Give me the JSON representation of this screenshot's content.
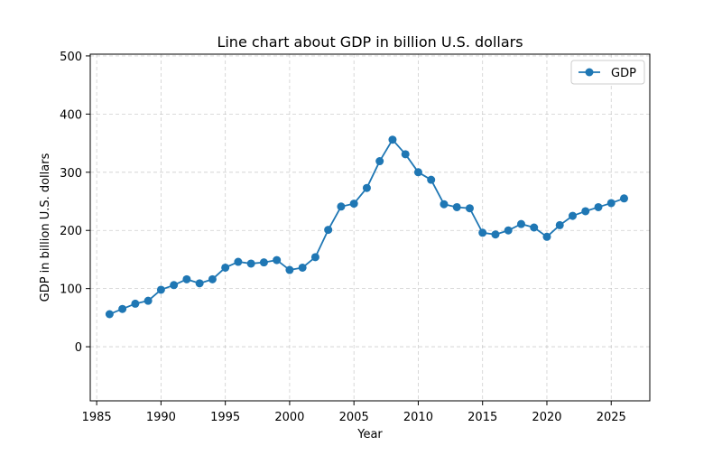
{
  "chart_data": {
    "type": "line",
    "title": "Line chart about GDP in billion U.S. dollars",
    "xlabel": "Year",
    "ylabel": "GDP in billion U.S. dollars",
    "xlim": [
      1984.5,
      2028
    ],
    "ylim": [
      -93,
      503
    ],
    "xticks": [
      1985,
      1990,
      1995,
      2000,
      2005,
      2010,
      2015,
      2020,
      2025
    ],
    "yticks": [
      0,
      100,
      200,
      300,
      400,
      500
    ],
    "grid": true,
    "legend_position": "top-right",
    "series": [
      {
        "name": "GDP",
        "color": "#1f77b4",
        "x": [
          1986,
          1987,
          1988,
          1989,
          1990,
          1991,
          1992,
          1993,
          1994,
          1995,
          1996,
          1997,
          1998,
          1999,
          2000,
          2001,
          2002,
          2003,
          2004,
          2005,
          2006,
          2007,
          2008,
          2009,
          2010,
          2011,
          2012,
          2013,
          2014,
          2015,
          2016,
          2017,
          2018,
          2019,
          2020,
          2021,
          2022,
          2023,
          2024,
          2025,
          2026
        ],
        "y": [
          56,
          65,
          74,
          79,
          98,
          106,
          116,
          109,
          116,
          136,
          146,
          143,
          145,
          149,
          132,
          136,
          154,
          201,
          241,
          246,
          273,
          319,
          356,
          331,
          300,
          287,
          245,
          240,
          238,
          196,
          193,
          200,
          211,
          205,
          189,
          209,
          225,
          233,
          240,
          247,
          255
        ]
      }
    ]
  }
}
